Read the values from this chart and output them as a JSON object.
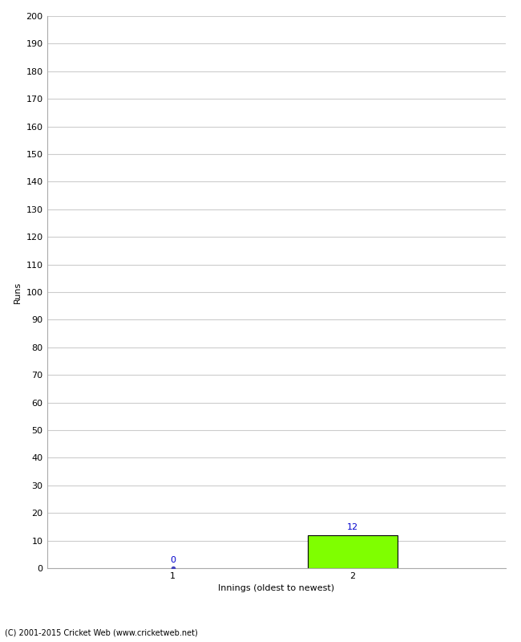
{
  "xlabel": "Innings (oldest to newest)",
  "ylabel": "Runs",
  "categories": [
    1,
    2
  ],
  "values": [
    0,
    12
  ],
  "bar_color": "#7fff00",
  "value_color": "#0000cc",
  "ylim": [
    0,
    200
  ],
  "yticks": [
    0,
    10,
    20,
    30,
    40,
    50,
    60,
    70,
    80,
    90,
    100,
    110,
    120,
    130,
    140,
    150,
    160,
    170,
    180,
    190,
    200
  ],
  "background_color": "#ffffff",
  "grid_color": "#cccccc",
  "footnote": "(C) 2001-2015 Cricket Web (www.cricketweb.net)",
  "bar_width": 0.5,
  "dot_color": "#4444bb",
  "spine_color": "#aaaaaa",
  "tick_label_fontsize": 8,
  "axis_label_fontsize": 8,
  "footnote_fontsize": 7
}
